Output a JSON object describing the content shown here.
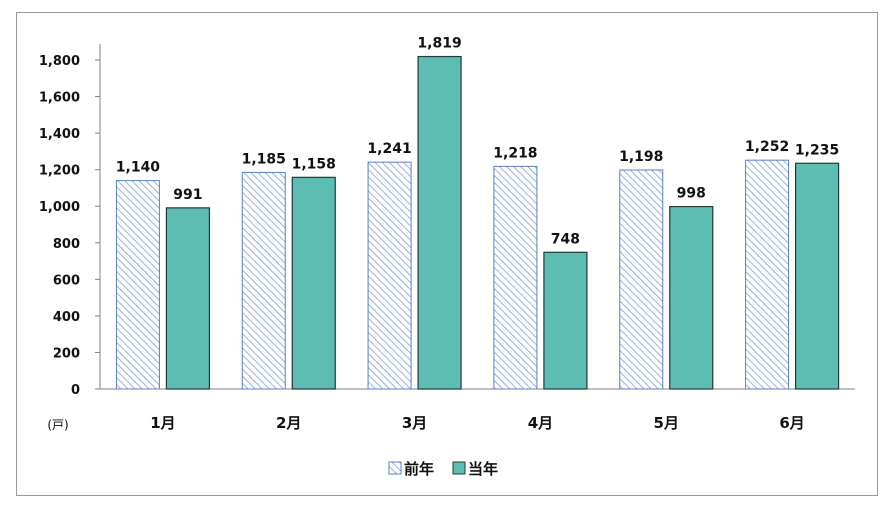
{
  "colors": {
    "prev_year": "#ffffff",
    "prev_year_hatch": "#7f9ed6",
    "prev_year_border": "#5b7fc4",
    "current_year": "#5ebdb2",
    "current_year_border": "#1f3b3a",
    "axis": "#7f7f7f"
  },
  "chart_data": {
    "type": "bar",
    "categories": [
      "1月",
      "2月",
      "3月",
      "4月",
      "5月",
      "6月"
    ],
    "series": [
      {
        "name": "前年",
        "values": [
          1140,
          1185,
          1241,
          1218,
          1198,
          1252
        ],
        "labels": [
          "1,140",
          "1,185",
          "1,241",
          "1,218",
          "1,198",
          "1,252"
        ]
      },
      {
        "name": "当年",
        "values": [
          991,
          1158,
          1819,
          748,
          998,
          1235
        ],
        "labels": [
          "991",
          "1,158",
          "1,819",
          "748",
          "998",
          "1,235"
        ]
      }
    ],
    "ylim": [
      0,
      1800
    ],
    "yticks": [
      0,
      200,
      400,
      600,
      800,
      1000,
      1200,
      1400,
      1600,
      1800
    ],
    "ytick_labels": [
      "0",
      "200",
      "400",
      "600",
      "800",
      "1,000",
      "1,200",
      "1,400",
      "1,600",
      "1,800"
    ],
    "unit_label": "(戸)",
    "legend_position": "bottom",
    "grid": false
  }
}
